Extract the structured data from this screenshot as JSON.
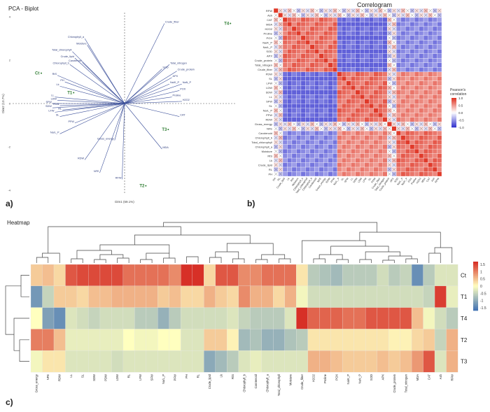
{
  "panel_labels": {
    "a": "a)",
    "b": "b)",
    "c": "c)"
  },
  "colors": {
    "high": "#d73027",
    "mid": "#ffffbf",
    "low": "#4575b4",
    "corr_pos": "#e03a2a",
    "corr_neg": "#3a3ad0"
  },
  "chart_data": [
    {
      "type": "scatter",
      "id": "biplot",
      "title": "PCA - Biplot",
      "xlabel": "Dim1 (69.1%)",
      "ylabel": "Dim2 (13.7%)",
      "xlim": [
        -4.5,
        4.5
      ],
      "ylim": [
        -4.2,
        4.2
      ],
      "y_ticks": [
        "4",
        "2",
        "0",
        "-2",
        "-4"
      ],
      "points": [
        {
          "label": "T4",
          "x": 4.0,
          "y": 3.7
        },
        {
          "label": "Ct",
          "x": -3.6,
          "y": 1.4
        },
        {
          "label": "T1",
          "x": -2.3,
          "y": 0.5
        },
        {
          "label": "T3",
          "x": 1.5,
          "y": -1.2
        },
        {
          "label": "T2",
          "x": 0.6,
          "y": -3.8
        }
      ],
      "vectors": [
        {
          "label": "Crude_fiber",
          "x": 1.6,
          "y": 3.7
        },
        {
          "label": "Chlorophyll_a",
          "x": -1.6,
          "y": 3.0
        },
        {
          "label": "Moisture",
          "x": -1.5,
          "y": 2.7
        },
        {
          "label": "Total_chlorophyll",
          "x": -2.1,
          "y": 2.4
        },
        {
          "label": "Crude_lipid",
          "x": -2.0,
          "y": 2.1
        },
        {
          "label": "Carotenoid",
          "x": -1.7,
          "y": 1.9
        },
        {
          "label": "Chlorophyll_b",
          "x": -2.2,
          "y": 1.8
        },
        {
          "label": "RtS",
          "x": -2.7,
          "y": 1.3
        },
        {
          "label": "PH",
          "x": -2.4,
          "y": 1.0
        },
        {
          "label": "Lk",
          "x": -2.6,
          "y": 0.8
        },
        {
          "label": "LL",
          "x": -2.8,
          "y": 0.3
        },
        {
          "label": "LDW",
          "x": -2.7,
          "y": 0.15
        },
        {
          "label": "SFW",
          "x": -2.9,
          "y": 0.0
        },
        {
          "label": "PDW",
          "x": -2.6,
          "y": -0.1
        },
        {
          "label": "SDW",
          "x": -2.9,
          "y": -0.2
        },
        {
          "label": "RL",
          "x": -2.5,
          "y": -0.3
        },
        {
          "label": "LFW",
          "x": -2.8,
          "y": -0.4
        },
        {
          "label": "SL",
          "x": -2.6,
          "y": -0.6
        },
        {
          "label": "PFW",
          "x": -2.0,
          "y": -0.9
        },
        {
          "label": "Na/L_P",
          "x": -2.6,
          "y": -1.4
        },
        {
          "label": "RDW",
          "x": -1.6,
          "y": -2.6
        },
        {
          "label": "NFE",
          "x": -1.0,
          "y": -3.2
        },
        {
          "label": "Gross_energy",
          "x": -0.4,
          "y": -1.7
        },
        {
          "label": "RFW",
          "x": -0.1,
          "y": -3.5
        },
        {
          "label": "Total_nitrogen",
          "x": 1.8,
          "y": 1.8
        },
        {
          "label": "SOD",
          "x": 1.5,
          "y": 1.6
        },
        {
          "label": "Crude_protein",
          "x": 2.1,
          "y": 1.5
        },
        {
          "label": "APX",
          "x": 1.9,
          "y": 1.2
        },
        {
          "label": "NaN_P",
          "x": 2.3,
          "y": 0.9
        },
        {
          "label": "Na/K_P",
          "x": 1.8,
          "y": 0.9
        },
        {
          "label": "POX",
          "x": 2.2,
          "y": 0.6
        },
        {
          "label": "Proline",
          "x": 1.9,
          "y": 0.3
        },
        {
          "label": "H2O2",
          "x": 2.3,
          "y": 0.1
        },
        {
          "label": "CAT",
          "x": 2.2,
          "y": -0.6
        },
        {
          "label": "MDA",
          "x": 1.5,
          "y": -2.1
        }
      ]
    },
    {
      "type": "heatmap",
      "id": "correlogram",
      "title": "Correlogram",
      "legend_title": "Pearson's correlation",
      "legend_ticks": [
        "1.0",
        "0.5",
        "0.0",
        "-0.5",
        "-1.0"
      ],
      "variables": [
        "RFW",
        "Ash",
        "CAT",
        "MDA",
        "H2O2",
        "Proline",
        "POX",
        "Na/K_P",
        "Na/L_P",
        "SOD",
        "APX",
        "Crude_protein",
        "Total_nitrogen",
        "Crude_fiber",
        "PDW",
        "SL",
        "LFW",
        "LDW",
        "SDW",
        "LL",
        "SFW",
        "SL",
        "Na/L_P",
        "PFW",
        "RDW",
        "Gross_energy",
        "NFE",
        "Carotenoid",
        "Chlorophyll_b",
        "Total_chlorophyll",
        "Chlorophyll_a",
        "Moisture",
        "RtS",
        "Lk",
        "Crude_lipid",
        "RL",
        "PH"
      ]
    },
    {
      "type": "heatmap",
      "id": "heatmap",
      "title": "Heatmap",
      "legend_ticks": [
        "1.5",
        "1",
        "0.5",
        "0",
        "-0.5",
        "-1",
        "-1.5"
      ],
      "rows": [
        "Ct",
        "T1",
        "T4",
        "T2",
        "T3"
      ],
      "columns": [
        "Gross_energy",
        "NFE",
        "RDW",
        "LL",
        "SL",
        "SDW",
        "PDW",
        "LDW",
        "RL",
        "LFW",
        "SFW",
        "Na/L_P",
        "PFW",
        "PH",
        "RL",
        "Crude_lipid",
        "Lk",
        "RtS",
        "Chlorophyll_b",
        "Carotenoid",
        "Chlorophyll_a",
        "Total_chlorophyll",
        "Moisture",
        "Crude_fiber",
        "H2O2",
        "Proline",
        "POX",
        "Na/K_P",
        "NaN_P",
        "SOD",
        "APX",
        "Crude_protein",
        "Total_nitrogen",
        "MDA",
        "CAT",
        "Ash",
        "RFW"
      ],
      "values": [
        [
          0.4,
          0.5,
          0.3,
          1.3,
          1.4,
          1.4,
          1.4,
          1.4,
          1.1,
          1.1,
          1.1,
          1.1,
          0.9,
          1.6,
          1.6,
          0.3,
          1.3,
          1.3,
          0.9,
          0.9,
          1.1,
          1.1,
          1.1,
          0.2,
          -0.6,
          -0.7,
          -0.8,
          -0.6,
          -0.6,
          -0.6,
          -0.4,
          -0.6,
          -0.5,
          -1.3,
          -0.6,
          -0.3,
          -0.3
        ],
        [
          -1.2,
          -0.5,
          0.4,
          0.4,
          0.3,
          0.5,
          0.5,
          0.6,
          0.6,
          0.6,
          0.6,
          0.4,
          0.5,
          0.3,
          0.3,
          0.6,
          0.4,
          0.3,
          0.9,
          0.6,
          0.6,
          0.3,
          0.6,
          -0.1,
          -0.4,
          -0.4,
          -0.4,
          -0.4,
          -0.4,
          -0.4,
          -0.4,
          -0.4,
          -0.4,
          -0.4,
          -0.5,
          1.5,
          -0.2
        ],
        [
          0.0,
          -1.1,
          -1.3,
          -0.3,
          -0.4,
          -0.5,
          -0.4,
          -0.4,
          -0.4,
          -0.6,
          -0.6,
          -0.9,
          -0.6,
          -0.4,
          -0.4,
          -0.4,
          -0.4,
          -0.3,
          -0.5,
          -0.6,
          -0.6,
          -0.6,
          -0.3,
          1.6,
          1.2,
          1.2,
          1.2,
          1.1,
          1.1,
          1.3,
          1.3,
          1.3,
          1.3,
          0.5,
          -0.1,
          -0.4,
          -0.6
        ],
        [
          1.0,
          1.0,
          0.5,
          -0.2,
          -0.2,
          -0.2,
          -0.2,
          -0.2,
          0.0,
          -0.1,
          -0.1,
          0.0,
          0.0,
          -0.3,
          -0.3,
          0.4,
          0.4,
          0.1,
          -0.8,
          -0.7,
          -0.9,
          -0.9,
          -0.7,
          -0.6,
          0.2,
          0.2,
          0.2,
          0.2,
          0.2,
          0.2,
          0.2,
          0.1,
          0.1,
          0.3,
          0.4,
          -0.5,
          0.6
        ],
        [
          -0.1,
          0.2,
          0.2,
          -0.3,
          -0.3,
          -0.3,
          -0.3,
          -0.4,
          -0.3,
          -0.3,
          -0.3,
          -0.3,
          -0.3,
          -0.3,
          -0.3,
          -1.0,
          -0.8,
          -0.6,
          -0.3,
          -0.2,
          -0.3,
          -0.3,
          -0.3,
          -0.3,
          0.6,
          0.6,
          0.5,
          0.4,
          0.4,
          0.4,
          0.5,
          0.4,
          0.5,
          0.8,
          1.3,
          -0.3,
          0.6
        ]
      ]
    }
  ]
}
